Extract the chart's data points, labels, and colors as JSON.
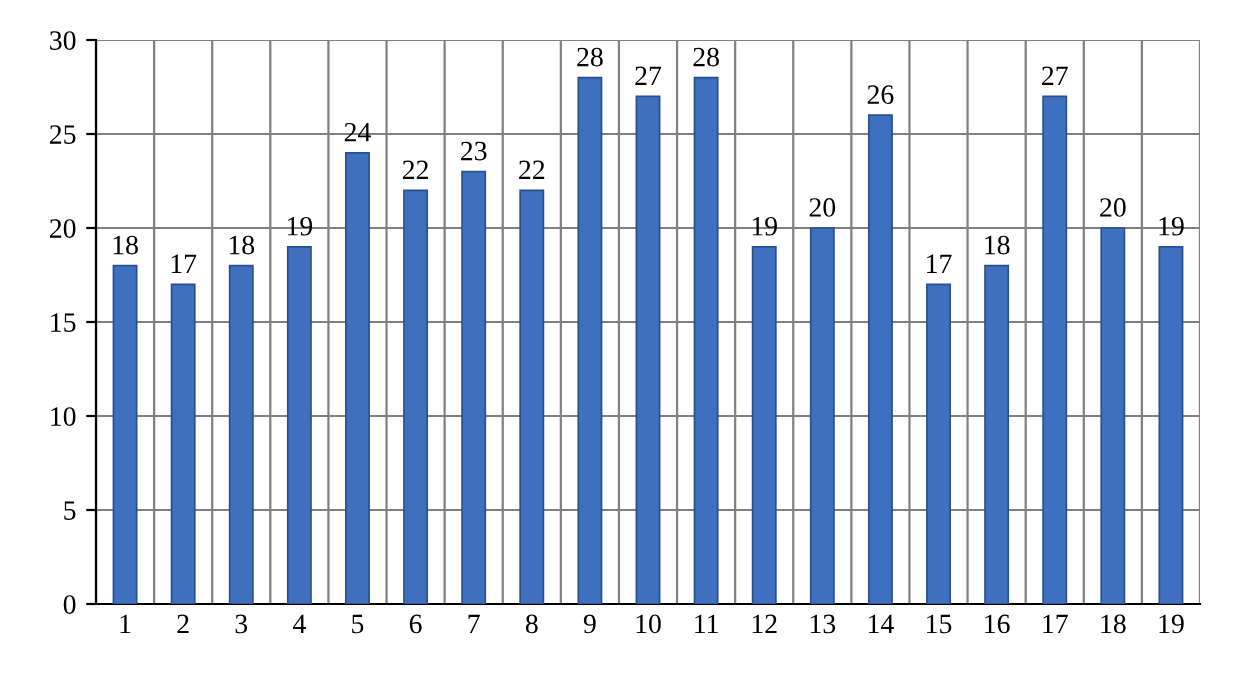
{
  "chart_data": {
    "type": "bar",
    "categories": [
      "1",
      "2",
      "3",
      "4",
      "5",
      "6",
      "7",
      "8",
      "9",
      "10",
      "11",
      "12",
      "13",
      "14",
      "15",
      "16",
      "17",
      "18",
      "19"
    ],
    "values": [
      18,
      17,
      18,
      19,
      24,
      22,
      23,
      22,
      28,
      27,
      28,
      19,
      20,
      26,
      17,
      18,
      27,
      20,
      19
    ],
    "color": "#3f6fbf",
    "ylim": [
      0,
      30
    ],
    "yticks": [
      0,
      5,
      10,
      15,
      20,
      25,
      30
    ],
    "grid": true,
    "data_labels": true,
    "legend": false
  }
}
